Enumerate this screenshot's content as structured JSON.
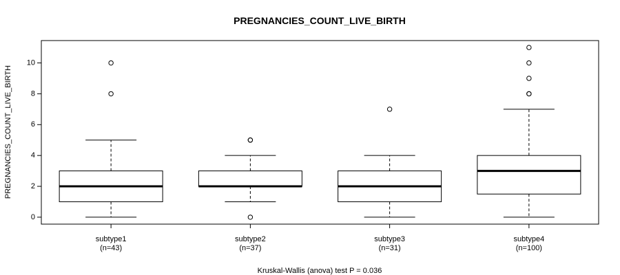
{
  "chart_data": {
    "type": "boxplot",
    "title": "PREGNANCIES_COUNT_LIVE_BIRTH",
    "ylabel": "PREGNANCIES_COUNT_LIVE_BIRTH",
    "xlabel": "",
    "ylim": [
      -0.45,
      11.45
    ],
    "yticks": [
      0,
      2,
      4,
      6,
      8,
      10
    ],
    "yticks_labels": [
      "0",
      "2",
      "4",
      "6",
      "8",
      "10"
    ],
    "footnote": "Kruskal-Wallis (anova) test P = 0.036",
    "groups": [
      {
        "name": "subtype1",
        "n_label": "(n=43)",
        "min": 0,
        "q1": 1,
        "median": 2,
        "q3": 3,
        "max": 5,
        "outliers": [
          8,
          10
        ]
      },
      {
        "name": "subtype2",
        "n_label": "(n=37)",
        "min": 1,
        "q1": 2,
        "median": 2,
        "q3": 3,
        "max": 4,
        "outliers": [
          0,
          5,
          5
        ]
      },
      {
        "name": "subtype3",
        "n_label": "(n=31)",
        "min": 0,
        "q1": 1,
        "median": 2,
        "q3": 3,
        "max": 4,
        "outliers": [
          7
        ]
      },
      {
        "name": "subtype4",
        "n_label": "(n=100)",
        "min": 0,
        "q1": 1.5,
        "median": 3,
        "q3": 4,
        "max": 7,
        "outliers": [
          8,
          8,
          9,
          10,
          11
        ]
      }
    ]
  }
}
